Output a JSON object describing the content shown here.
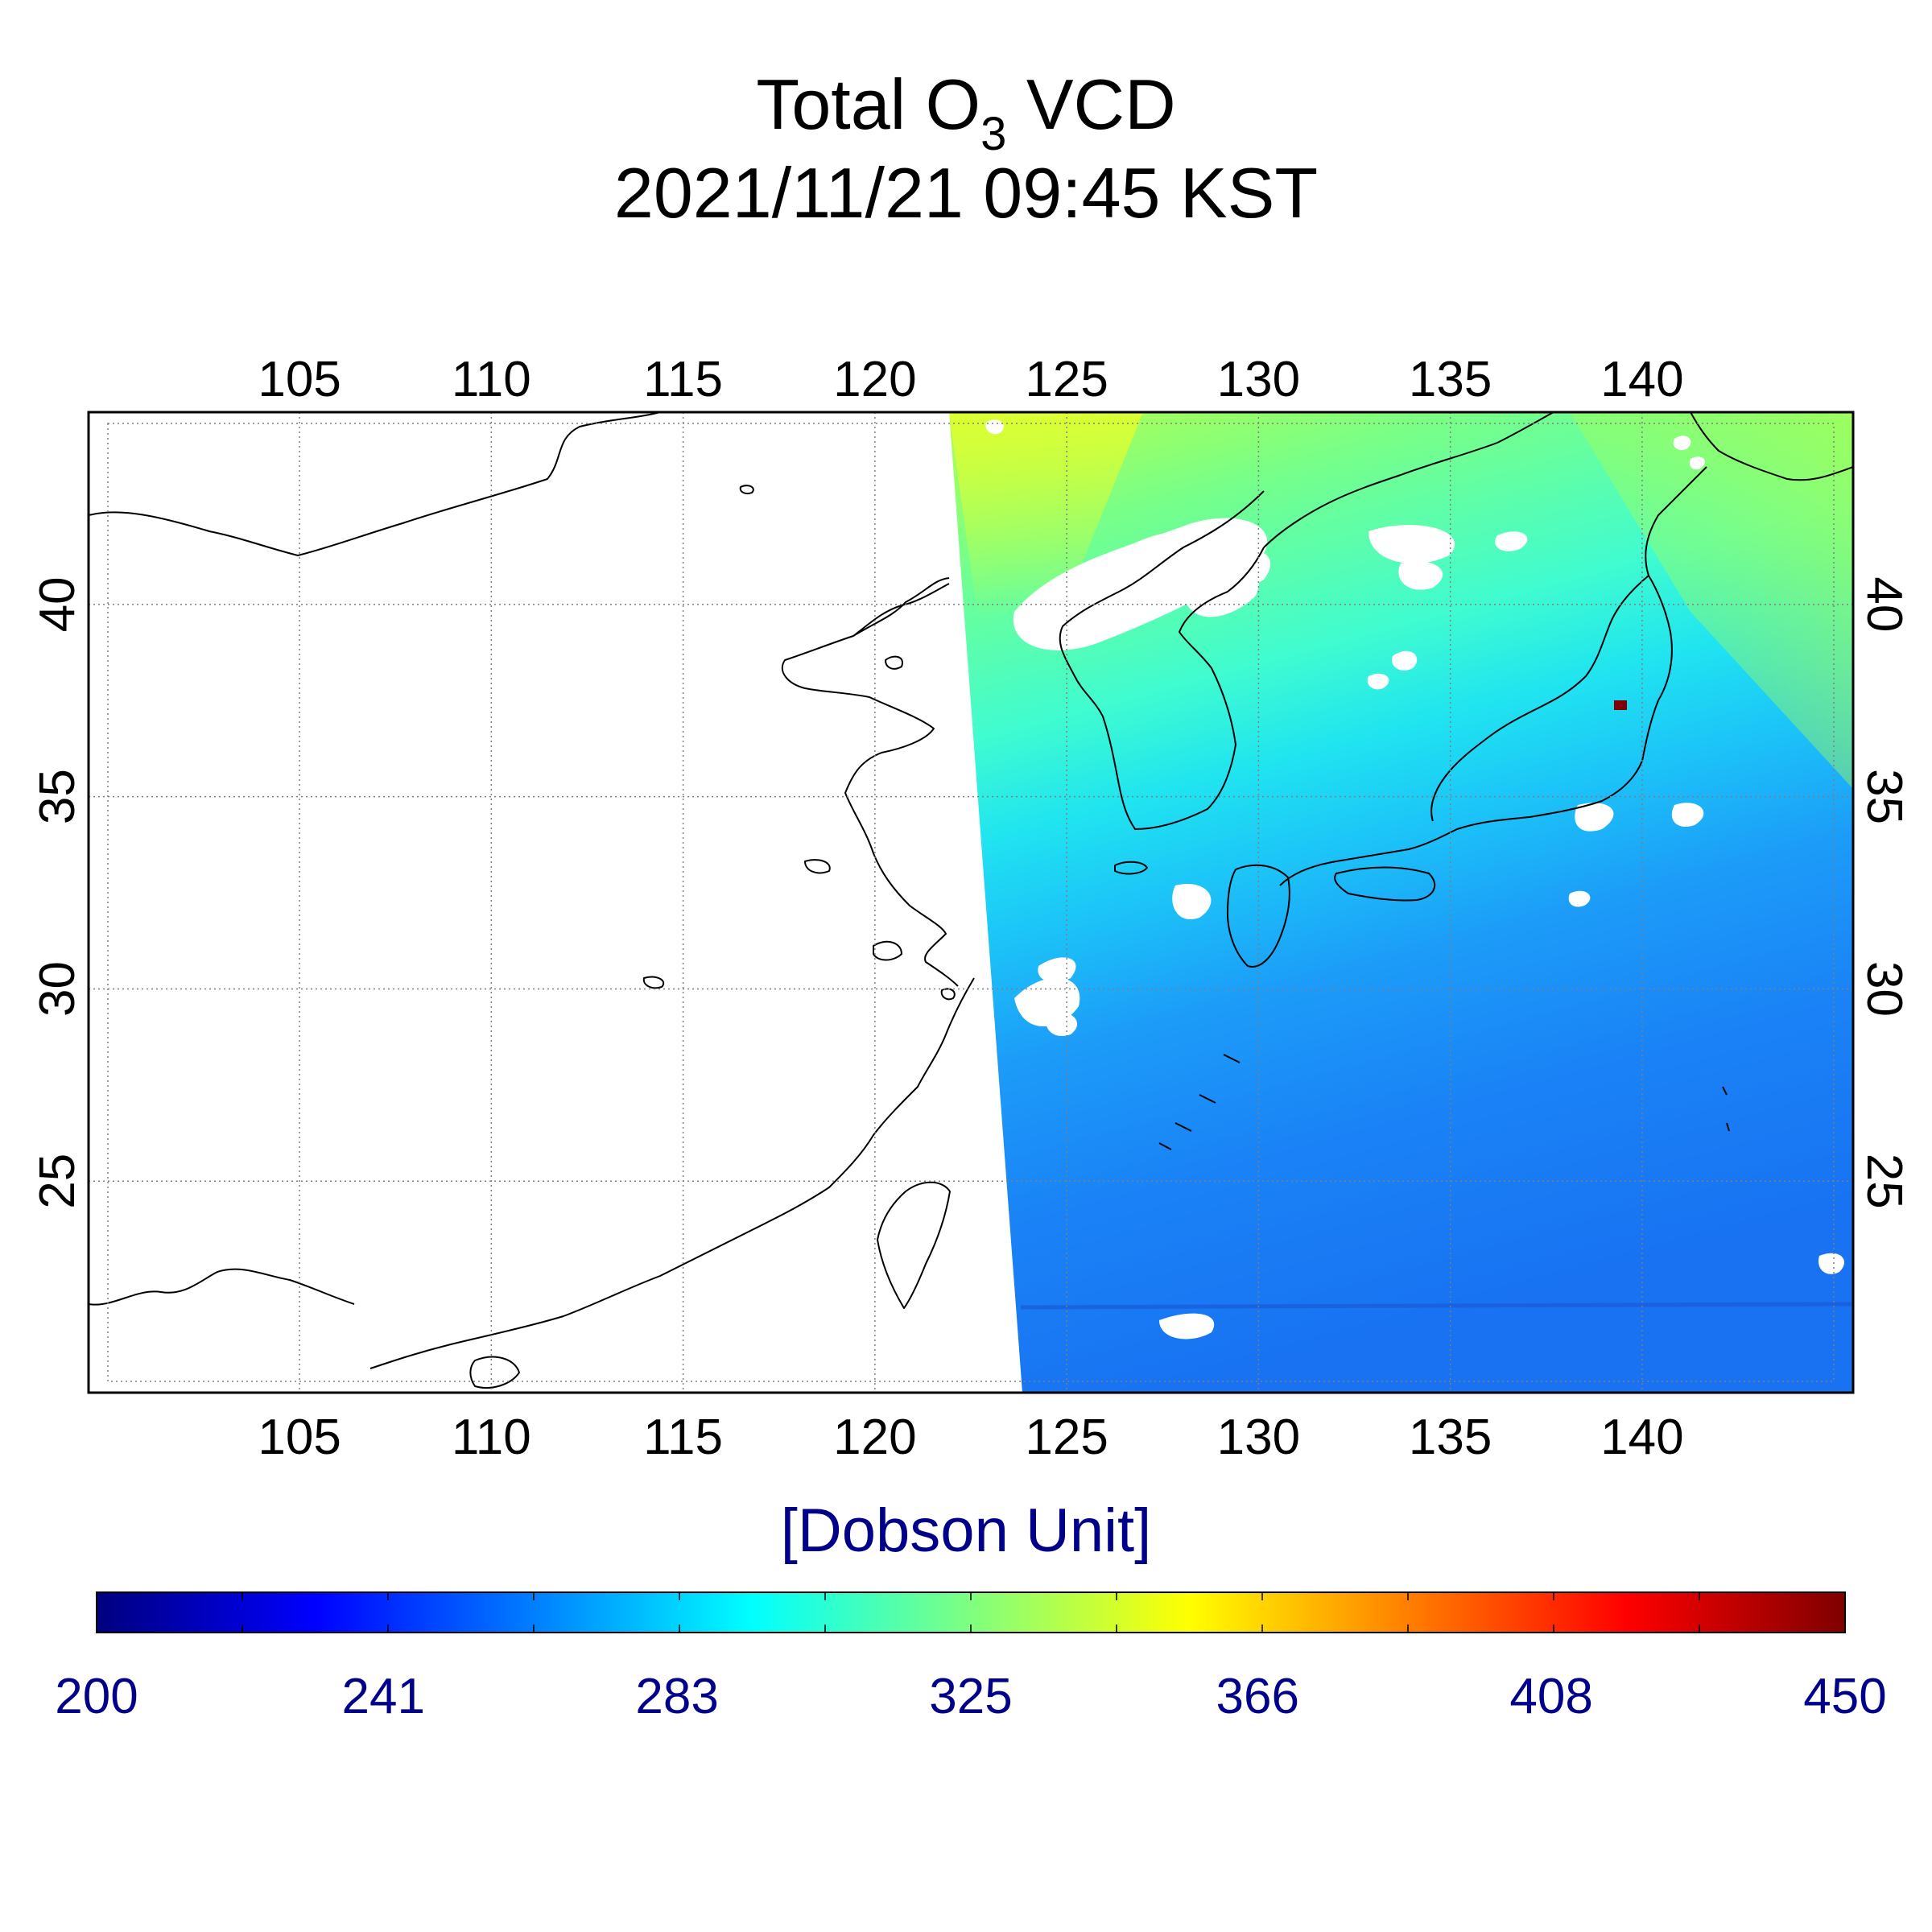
{
  "title": {
    "prefix": "Total O",
    "subscript": "3",
    "suffix": " VCD",
    "datetime": "2021/11/21 09:45 KST"
  },
  "map": {
    "lon_range": [
      99.5,
      145.5
    ],
    "lat_range": [
      19.5,
      45.0
    ],
    "lon_ticks": [
      105,
      110,
      115,
      120,
      125,
      130,
      135,
      140
    ],
    "lat_ticks": [
      25,
      30,
      35,
      40
    ],
    "lon_tick_labels": [
      "105",
      "110",
      "115",
      "120",
      "125",
      "130",
      "135",
      "140"
    ],
    "lat_tick_labels": [
      "25",
      "30",
      "35",
      "40"
    ],
    "grid": "dotted",
    "swath_west_edge_lon": {
      "north": 121.9,
      "south": 123.8
    },
    "clouds": "white gaps over Korea, Sea of Japan, East China Sea",
    "high_ozone_hotspot_lon_lat": [
      139.4,
      37.8
    ]
  },
  "colorbar": {
    "label": "[Dobson Unit]",
    "min": 200,
    "max": 450,
    "tick_labels": [
      "200",
      "241",
      "283",
      "325",
      "366",
      "408",
      "450"
    ],
    "colormap": "jet",
    "colors": [
      "#00007f",
      "#0000ff",
      "#007fff",
      "#00ffff",
      "#7fff7f",
      "#ffff00",
      "#ff7f00",
      "#ff0000",
      "#7f0000"
    ]
  }
}
